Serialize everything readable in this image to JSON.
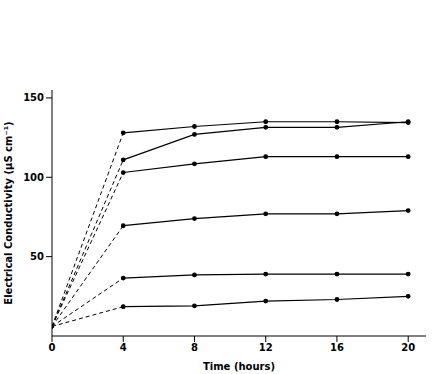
{
  "chart_data": {
    "type": "line",
    "x_label": "Time (hours)",
    "y_label": "Electrical Conductivity (μS cm⁻¹)",
    "x": [
      0,
      4,
      8,
      12,
      16,
      20
    ],
    "xlim": [
      0,
      21
    ],
    "xticks": [
      0,
      4,
      8,
      12,
      16,
      20
    ],
    "ylim": [
      0,
      155
    ],
    "yticks": [
      50,
      100,
      150
    ],
    "grid": false,
    "series": [
      {
        "color": "#000000",
        "values": [
          6,
          128,
          132,
          135,
          135,
          134.5
        ]
      },
      {
        "color": "#000000",
        "values": [
          6,
          111,
          127,
          131.5,
          131.5,
          135
        ]
      },
      {
        "color": "#000000",
        "values": [
          6,
          103,
          108.5,
          113,
          113,
          113
        ]
      },
      {
        "color": "#000000",
        "values": [
          6,
          69.5,
          74,
          77,
          77,
          79
        ]
      },
      {
        "color": "#000000",
        "values": [
          6,
          36.5,
          38.5,
          39,
          39,
          39
        ]
      },
      {
        "color": "#000000",
        "values": [
          6,
          18.5,
          19,
          22,
          23,
          25
        ]
      }
    ]
  }
}
